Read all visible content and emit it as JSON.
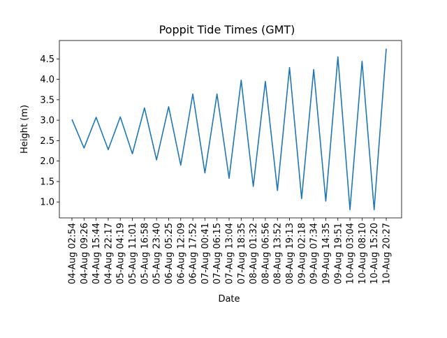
{
  "chart_data": {
    "type": "line",
    "title": "Poppit Tide Times (GMT)",
    "xlabel": "Date",
    "ylabel": "Height (m)",
    "x": [
      "04-Aug 02:54",
      "04-Aug 09:26",
      "04-Aug 15:44",
      "04-Aug 22:17",
      "05-Aug 04:19",
      "05-Aug 11:01",
      "05-Aug 16:58",
      "05-Aug 23:40",
      "06-Aug 05:25",
      "06-Aug 12:09",
      "06-Aug 17:52",
      "07-Aug 00:41",
      "07-Aug 06:15",
      "07-Aug 13:04",
      "07-Aug 18:35",
      "08-Aug 01:32",
      "08-Aug 06:56",
      "08-Aug 13:52",
      "08-Aug 19:13",
      "09-Aug 02:18",
      "09-Aug 07:34",
      "09-Aug 14:35",
      "09-Aug 19:51",
      "10-Aug 03:04",
      "10-Aug 08:10",
      "10-Aug 15:20",
      "10-Aug 20:27"
    ],
    "series": [
      {
        "values": [
          3.02,
          2.32,
          3.07,
          2.28,
          3.08,
          2.18,
          3.3,
          2.03,
          3.33,
          1.9,
          3.64,
          1.71,
          3.64,
          1.58,
          3.98,
          1.38,
          3.95,
          1.28,
          4.29,
          1.08,
          4.24,
          1.02,
          4.55,
          0.81,
          4.44,
          0.81,
          4.75
        ]
      }
    ],
    "yticks": [
      1.0,
      1.5,
      2.0,
      2.5,
      3.0,
      3.5,
      4.0,
      4.5
    ],
    "ytick_labels": [
      "1.0",
      "1.5",
      "2.0",
      "2.5",
      "3.0",
      "3.5",
      "4.0",
      "4.5"
    ],
    "ylim": [
      0.61,
      4.95
    ],
    "grid": false,
    "line_color": "#1f77b4"
  }
}
